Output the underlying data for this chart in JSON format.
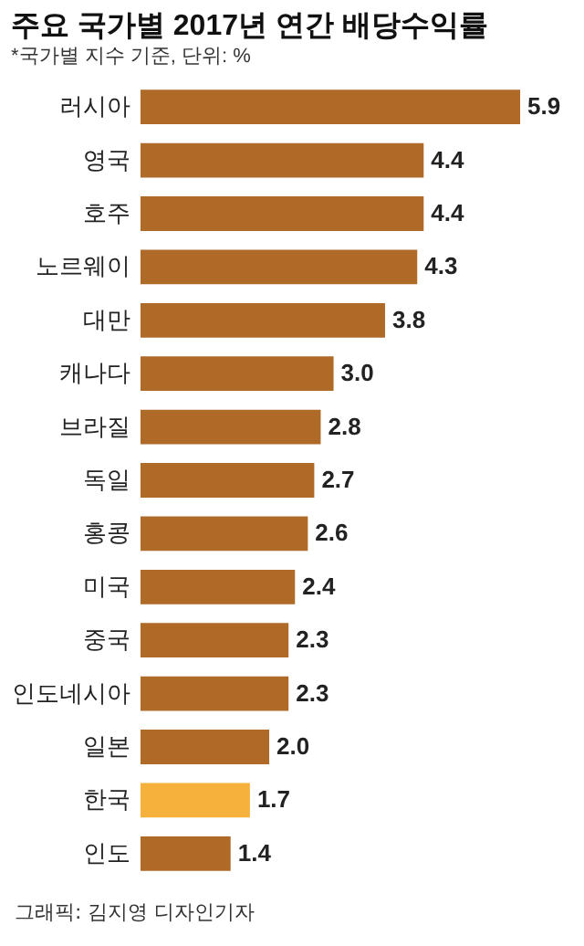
{
  "chart_data": {
    "type": "bar",
    "orientation": "horizontal",
    "title": "주요 국가별 2017년 연간 배당수익률",
    "subtitle": "*국가별 지수 기준, 단위: %",
    "categories": [
      "러시아",
      "영국",
      "호주",
      "노르웨이",
      "대만",
      "캐나다",
      "브라질",
      "독일",
      "홍콩",
      "미국",
      "중국",
      "인도네시아",
      "일본",
      "한국",
      "인도"
    ],
    "values": [
      5.9,
      4.4,
      4.4,
      4.3,
      3.8,
      3.0,
      2.8,
      2.7,
      2.6,
      2.4,
      2.3,
      2.3,
      2.0,
      1.7,
      1.4
    ],
    "colors": [
      "#b06a28",
      "#b06a28",
      "#b06a28",
      "#b06a28",
      "#b06a28",
      "#b06a28",
      "#b06a28",
      "#b06a28",
      "#b06a28",
      "#b06a28",
      "#b06a28",
      "#b06a28",
      "#b06a28",
      "#f6b03c",
      "#b06a28"
    ],
    "value_labels": [
      "5.9",
      "4.4",
      "4.4",
      "4.3",
      "3.8",
      "3.0",
      "2.8",
      "2.7",
      "2.6",
      "2.4",
      "2.3",
      "2.3",
      "2.0",
      "1.7",
      "1.4"
    ],
    "annotations": [
      "그래픽: 김지영 디자인기자"
    ]
  }
}
